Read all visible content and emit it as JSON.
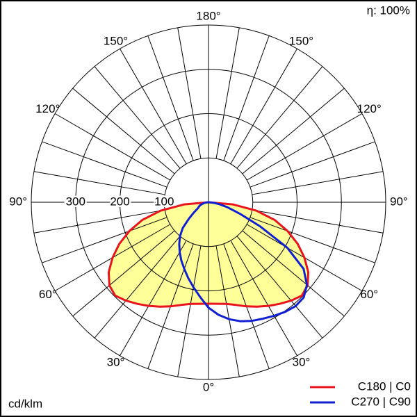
{
  "chart_data": {
    "type": "polar",
    "efficiency_label": "η: 100%",
    "unit_label": "cd/klm",
    "angles": [
      -90,
      -85,
      -80,
      -75,
      -70,
      -65,
      -60,
      -55,
      -50,
      -45,
      -40,
      -35,
      -30,
      -25,
      -20,
      -15,
      -10,
      -5,
      0,
      5,
      10,
      15,
      20,
      25,
      30,
      35,
      40,
      45,
      50,
      55,
      60,
      65,
      70,
      75,
      80,
      85,
      90
    ],
    "series": [
      {
        "name": "C180 | C0",
        "color": "#e8141c",
        "fill": "#ffff99",
        "values": [
          0,
          55,
          110,
          155,
          190,
          222,
          250,
          275,
          292,
          298,
          290,
          280,
          270,
          260,
          250,
          240,
          233,
          230,
          229,
          230,
          233,
          240,
          250,
          260,
          270,
          280,
          290,
          298,
          292,
          275,
          250,
          222,
          190,
          155,
          110,
          55,
          0
        ]
      },
      {
        "name": "C270 | C90",
        "color": "#1020d0",
        "values": [
          0,
          5,
          10,
          15,
          20,
          24,
          28,
          40,
          58,
          82,
          100,
          115,
          130,
          145,
          160,
          177,
          195,
          215,
          238,
          255,
          268,
          278,
          285,
          290,
          296,
          302,
          306,
          304,
          290,
          262,
          205,
          128,
          75,
          45,
          25,
          10,
          0
        ]
      }
    ],
    "rlim": [
      0,
      400
    ],
    "rticks": [
      100,
      200,
      300
    ],
    "angle_grid": [
      0,
      10,
      20,
      30,
      40,
      50,
      60,
      70,
      80,
      90,
      100,
      110,
      120,
      130,
      140,
      150,
      160,
      170,
      180
    ],
    "angle_ticks": [
      {
        "value": 0,
        "label": "0°"
      },
      {
        "value": 30,
        "label": "30°"
      },
      {
        "value": 60,
        "label": "60°"
      },
      {
        "value": 90,
        "label": "90°"
      },
      {
        "value": 120,
        "label": "120°"
      },
      {
        "value": 150,
        "label": "150°"
      },
      {
        "value": 180,
        "label": "180°"
      }
    ]
  }
}
